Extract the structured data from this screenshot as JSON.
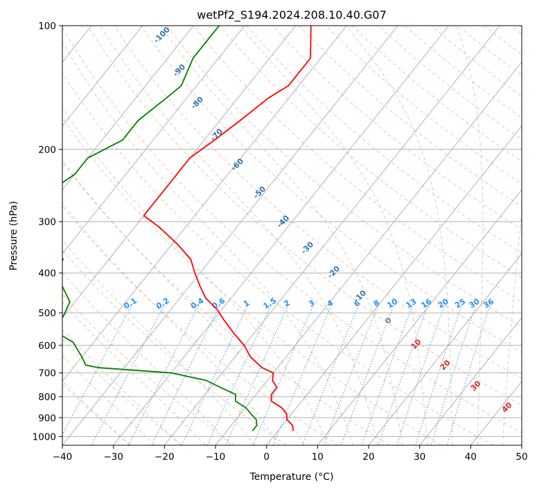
{
  "chart_data": {
    "type": "line",
    "title": "wetPf2_S194.2024.208.10.40.G07",
    "xlabel": "Temperature (°C)",
    "ylabel": "Pressure (hPa)",
    "xlim": [
      -40,
      50
    ],
    "ylim": [
      1050,
      100
    ],
    "y_scale": "log",
    "grid": true,
    "x_ticks": [
      "−40",
      "−30",
      "−20",
      "−10",
      "0",
      "10",
      "20",
      "30",
      "40",
      "50"
    ],
    "y_ticks": [
      "100",
      "200",
      "300",
      "400",
      "500",
      "600",
      "700",
      "800",
      "900",
      "1000"
    ],
    "skew_lines": {
      "temps": [
        -120,
        -110,
        -100,
        -90,
        -80,
        -70,
        -60,
        -50,
        -40,
        -30,
        -20,
        -10,
        0,
        10,
        20,
        30,
        40,
        50
      ],
      "color": "#b0b0b0"
    },
    "dry_adiabat_labels": [
      "-100",
      "-90",
      "-80",
      "-70",
      "-60",
      "-50",
      "-40",
      "-30",
      "-20",
      "-10"
    ],
    "dry_adiabat_label_color": "#2e75b6",
    "mixing_ratio_labels": [
      "0.1",
      "0.2",
      "0.4",
      "0.6",
      "1",
      "1.5",
      "2",
      "3",
      "4",
      "6",
      "8",
      "10",
      "13",
      "16",
      "20",
      "25",
      "30",
      "36"
    ],
    "mixing_ratio_label_color": "#1e90ff",
    "moist_adiabat_labels": [
      "0",
      "10",
      "20",
      "30",
      "40"
    ],
    "moist_adiabat_label_colors": [
      "#808080",
      "#d62728",
      "#d62728",
      "#d62728",
      "#d62728"
    ],
    "series": [
      {
        "color": "#ff0000",
        "values": [
          [
            100,
            -57
          ],
          [
            120,
            -52
          ],
          [
            140,
            -52
          ],
          [
            150,
            -54
          ],
          [
            170,
            -56
          ],
          [
            190,
            -58
          ],
          [
            210,
            -60
          ],
          [
            230,
            -60
          ],
          [
            250,
            -60
          ],
          [
            270,
            -60
          ],
          [
            290,
            -60
          ],
          [
            310,
            -55
          ],
          [
            340,
            -49
          ],
          [
            370,
            -44
          ],
          [
            400,
            -41
          ],
          [
            430,
            -38
          ],
          [
            460,
            -35
          ],
          [
            490,
            -31
          ],
          [
            520,
            -28
          ],
          [
            560,
            -24
          ],
          [
            600,
            -20
          ],
          [
            640,
            -17
          ],
          [
            680,
            -13
          ],
          [
            700,
            -10
          ],
          [
            730,
            -9
          ],
          [
            760,
            -7
          ],
          [
            790,
            -7
          ],
          [
            820,
            -6
          ],
          [
            850,
            -3
          ],
          [
            880,
            -1
          ],
          [
            910,
            0
          ],
          [
            940,
            2
          ],
          [
            970,
            3
          ]
        ]
      },
      {
        "color": "#008000",
        "values": [
          [
            100,
            -75
          ],
          [
            110,
            -75
          ],
          [
            120,
            -75
          ],
          [
            140,
            -73
          ],
          [
            150,
            -74
          ],
          [
            170,
            -76
          ],
          [
            190,
            -76
          ],
          [
            210,
            -80
          ],
          [
            230,
            -80
          ],
          [
            250,
            -82
          ],
          [
            270,
            -90
          ],
          [
            290,
            -88
          ],
          [
            310,
            -79
          ],
          [
            340,
            -76
          ],
          [
            370,
            -69
          ],
          [
            400,
            -68
          ],
          [
            430,
            -65
          ],
          [
            470,
            -61
          ],
          [
            510,
            -60
          ],
          [
            550,
            -60
          ],
          [
            590,
            -54
          ],
          [
            640,
            -50
          ],
          [
            670,
            -48
          ],
          [
            680,
            -45
          ],
          [
            700,
            -30
          ],
          [
            730,
            -22
          ],
          [
            760,
            -18
          ],
          [
            790,
            -14
          ],
          [
            820,
            -13
          ],
          [
            850,
            -10
          ],
          [
            880,
            -8
          ],
          [
            910,
            -6
          ],
          [
            940,
            -5
          ],
          [
            970,
            -5
          ]
        ]
      }
    ]
  }
}
